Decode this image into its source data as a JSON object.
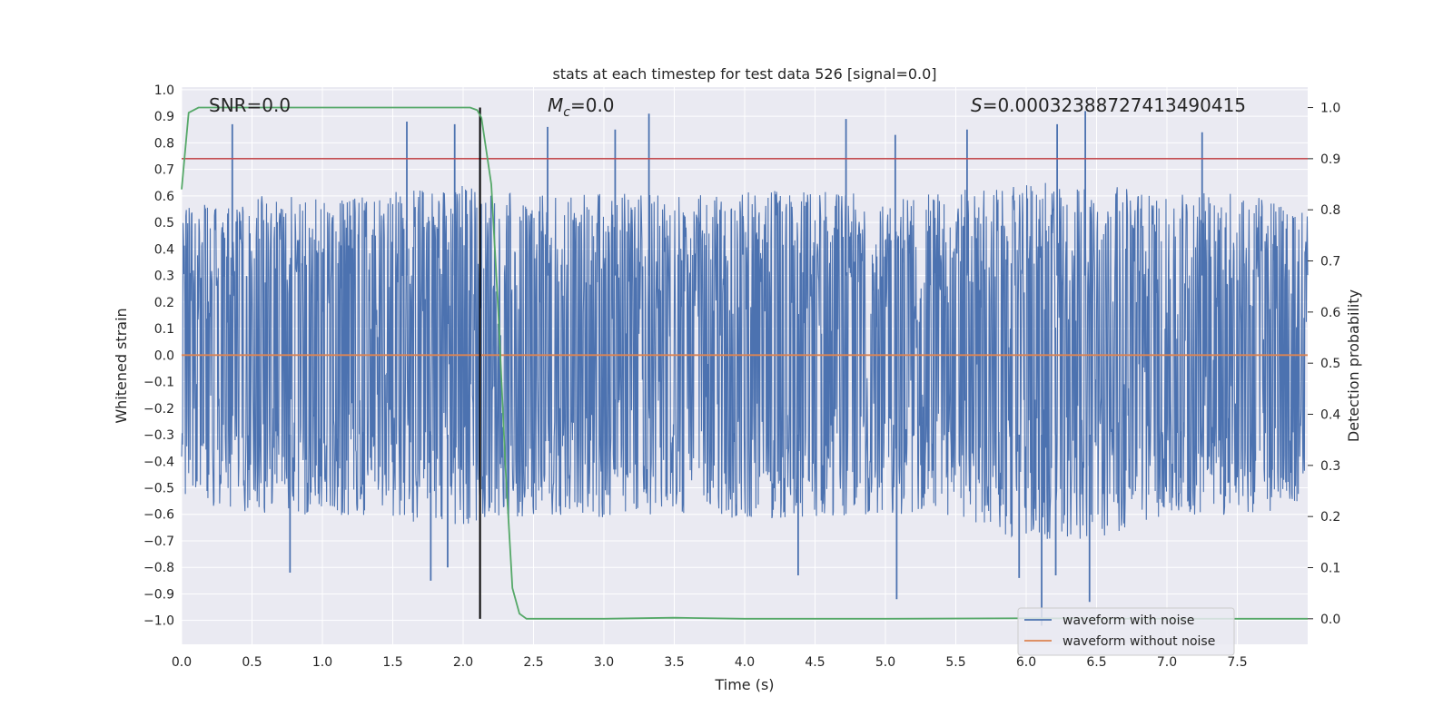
{
  "chart_data": {
    "type": "line",
    "title": "stats at each timestep for test data 526 [signal=0.0]",
    "xlabel": "Time (s)",
    "ylabel_left": "Whitened strain",
    "ylabel_right": "Detection probability",
    "xlim": [
      0.0,
      8.0
    ],
    "ylim_left": [
      -1.09,
      1.01
    ],
    "ylim_right": [
      -0.05,
      1.04
    ],
    "x_ticks": [
      "0.0",
      "0.5",
      "1.0",
      "1.5",
      "2.0",
      "2.5",
      "3.0",
      "3.5",
      "4.0",
      "4.5",
      "5.0",
      "5.5",
      "6.0",
      "6.5",
      "7.0",
      "7.5"
    ],
    "y_ticks_left": [
      "1.0",
      "0.9",
      "0.8",
      "0.7",
      "0.6",
      "0.5",
      "0.4",
      "0.3",
      "0.2",
      "0.1",
      "0.0",
      "−0.1",
      "−0.2",
      "−0.3",
      "−0.4",
      "−0.5",
      "−0.6",
      "−0.7",
      "−0.8",
      "−0.9",
      "−1.0"
    ],
    "y_ticks_right": [
      "1.0",
      "0.9",
      "0.8",
      "0.7",
      "0.6",
      "0.5",
      "0.4",
      "0.3",
      "0.2",
      "0.1",
      "0.0"
    ],
    "grid": true,
    "legend_placement": "lower right",
    "annotations": {
      "snr": "SNR=0.0",
      "mc_symbol": "M",
      "mc_sub": "c",
      "mc_value": "=0.0",
      "s_symbol": "S",
      "s_value": "=0.00032388727413490415"
    },
    "threshold_right": 0.9,
    "vertical_line_x": 2.12,
    "series": [
      {
        "name": "waveform with noise",
        "color": "#4c72b0",
        "envelope_x": [
          0.0,
          0.5,
          1.0,
          1.5,
          2.0,
          2.5,
          3.0,
          3.5,
          4.0,
          4.5,
          5.0,
          5.5,
          6.0,
          6.5,
          7.0,
          7.5,
          8.0
        ],
        "envelope_pos": [
          0.55,
          0.6,
          0.6,
          0.62,
          0.65,
          0.6,
          0.62,
          0.6,
          0.62,
          0.62,
          0.6,
          0.62,
          0.65,
          0.65,
          0.6,
          0.62,
          0.55
        ],
        "envelope_neg": [
          -0.55,
          -0.6,
          -0.6,
          -0.62,
          -0.65,
          -0.6,
          -0.62,
          -0.6,
          -0.62,
          -0.62,
          -0.6,
          -0.62,
          -0.7,
          -0.7,
          -0.6,
          -0.62,
          -0.55
        ],
        "peaks_x": [
          0.36,
          1.6,
          1.94,
          2.12,
          2.6,
          3.08,
          3.32,
          4.72,
          5.07,
          5.58,
          6.22,
          6.42,
          7.25
        ],
        "peaks_y": [
          0.87,
          0.88,
          0.87,
          0.81,
          0.86,
          0.85,
          0.91,
          0.89,
          0.83,
          0.85,
          0.87,
          0.92,
          0.84
        ],
        "troughs_x": [
          0.77,
          1.77,
          1.89,
          4.38,
          5.08,
          5.95,
          6.11,
          6.21,
          6.45
        ],
        "troughs_y": [
          -0.82,
          -0.85,
          -0.8,
          -0.83,
          -0.92,
          -0.84,
          -1.02,
          -0.83,
          -0.93
        ]
      },
      {
        "name": "waveform without noise",
        "color": "#dd8452",
        "x": [
          0.0,
          8.0
        ],
        "y": [
          0.0,
          0.0
        ]
      },
      {
        "name": "detection probability",
        "color": "#55a868",
        "axis": "right",
        "x": [
          0.0,
          0.05,
          0.12,
          0.3,
          0.6,
          1.0,
          1.5,
          1.9,
          2.05,
          2.1,
          2.13,
          2.2,
          2.25,
          2.3,
          2.35,
          2.4,
          2.45,
          2.6,
          3.0,
          3.5,
          4.0,
          5.0,
          6.0,
          7.0,
          8.0
        ],
        "y": [
          0.84,
          0.99,
          1.0,
          1.0,
          1.0,
          1.0,
          1.0,
          1.0,
          1.0,
          0.995,
          0.98,
          0.85,
          0.6,
          0.3,
          0.06,
          0.01,
          0.0,
          0.0,
          0.0,
          0.002,
          0.0,
          0.0,
          0.001,
          0.0,
          0.0
        ]
      }
    ],
    "threshold_color": "#c44e52",
    "vertical_line_color": "#000000"
  }
}
